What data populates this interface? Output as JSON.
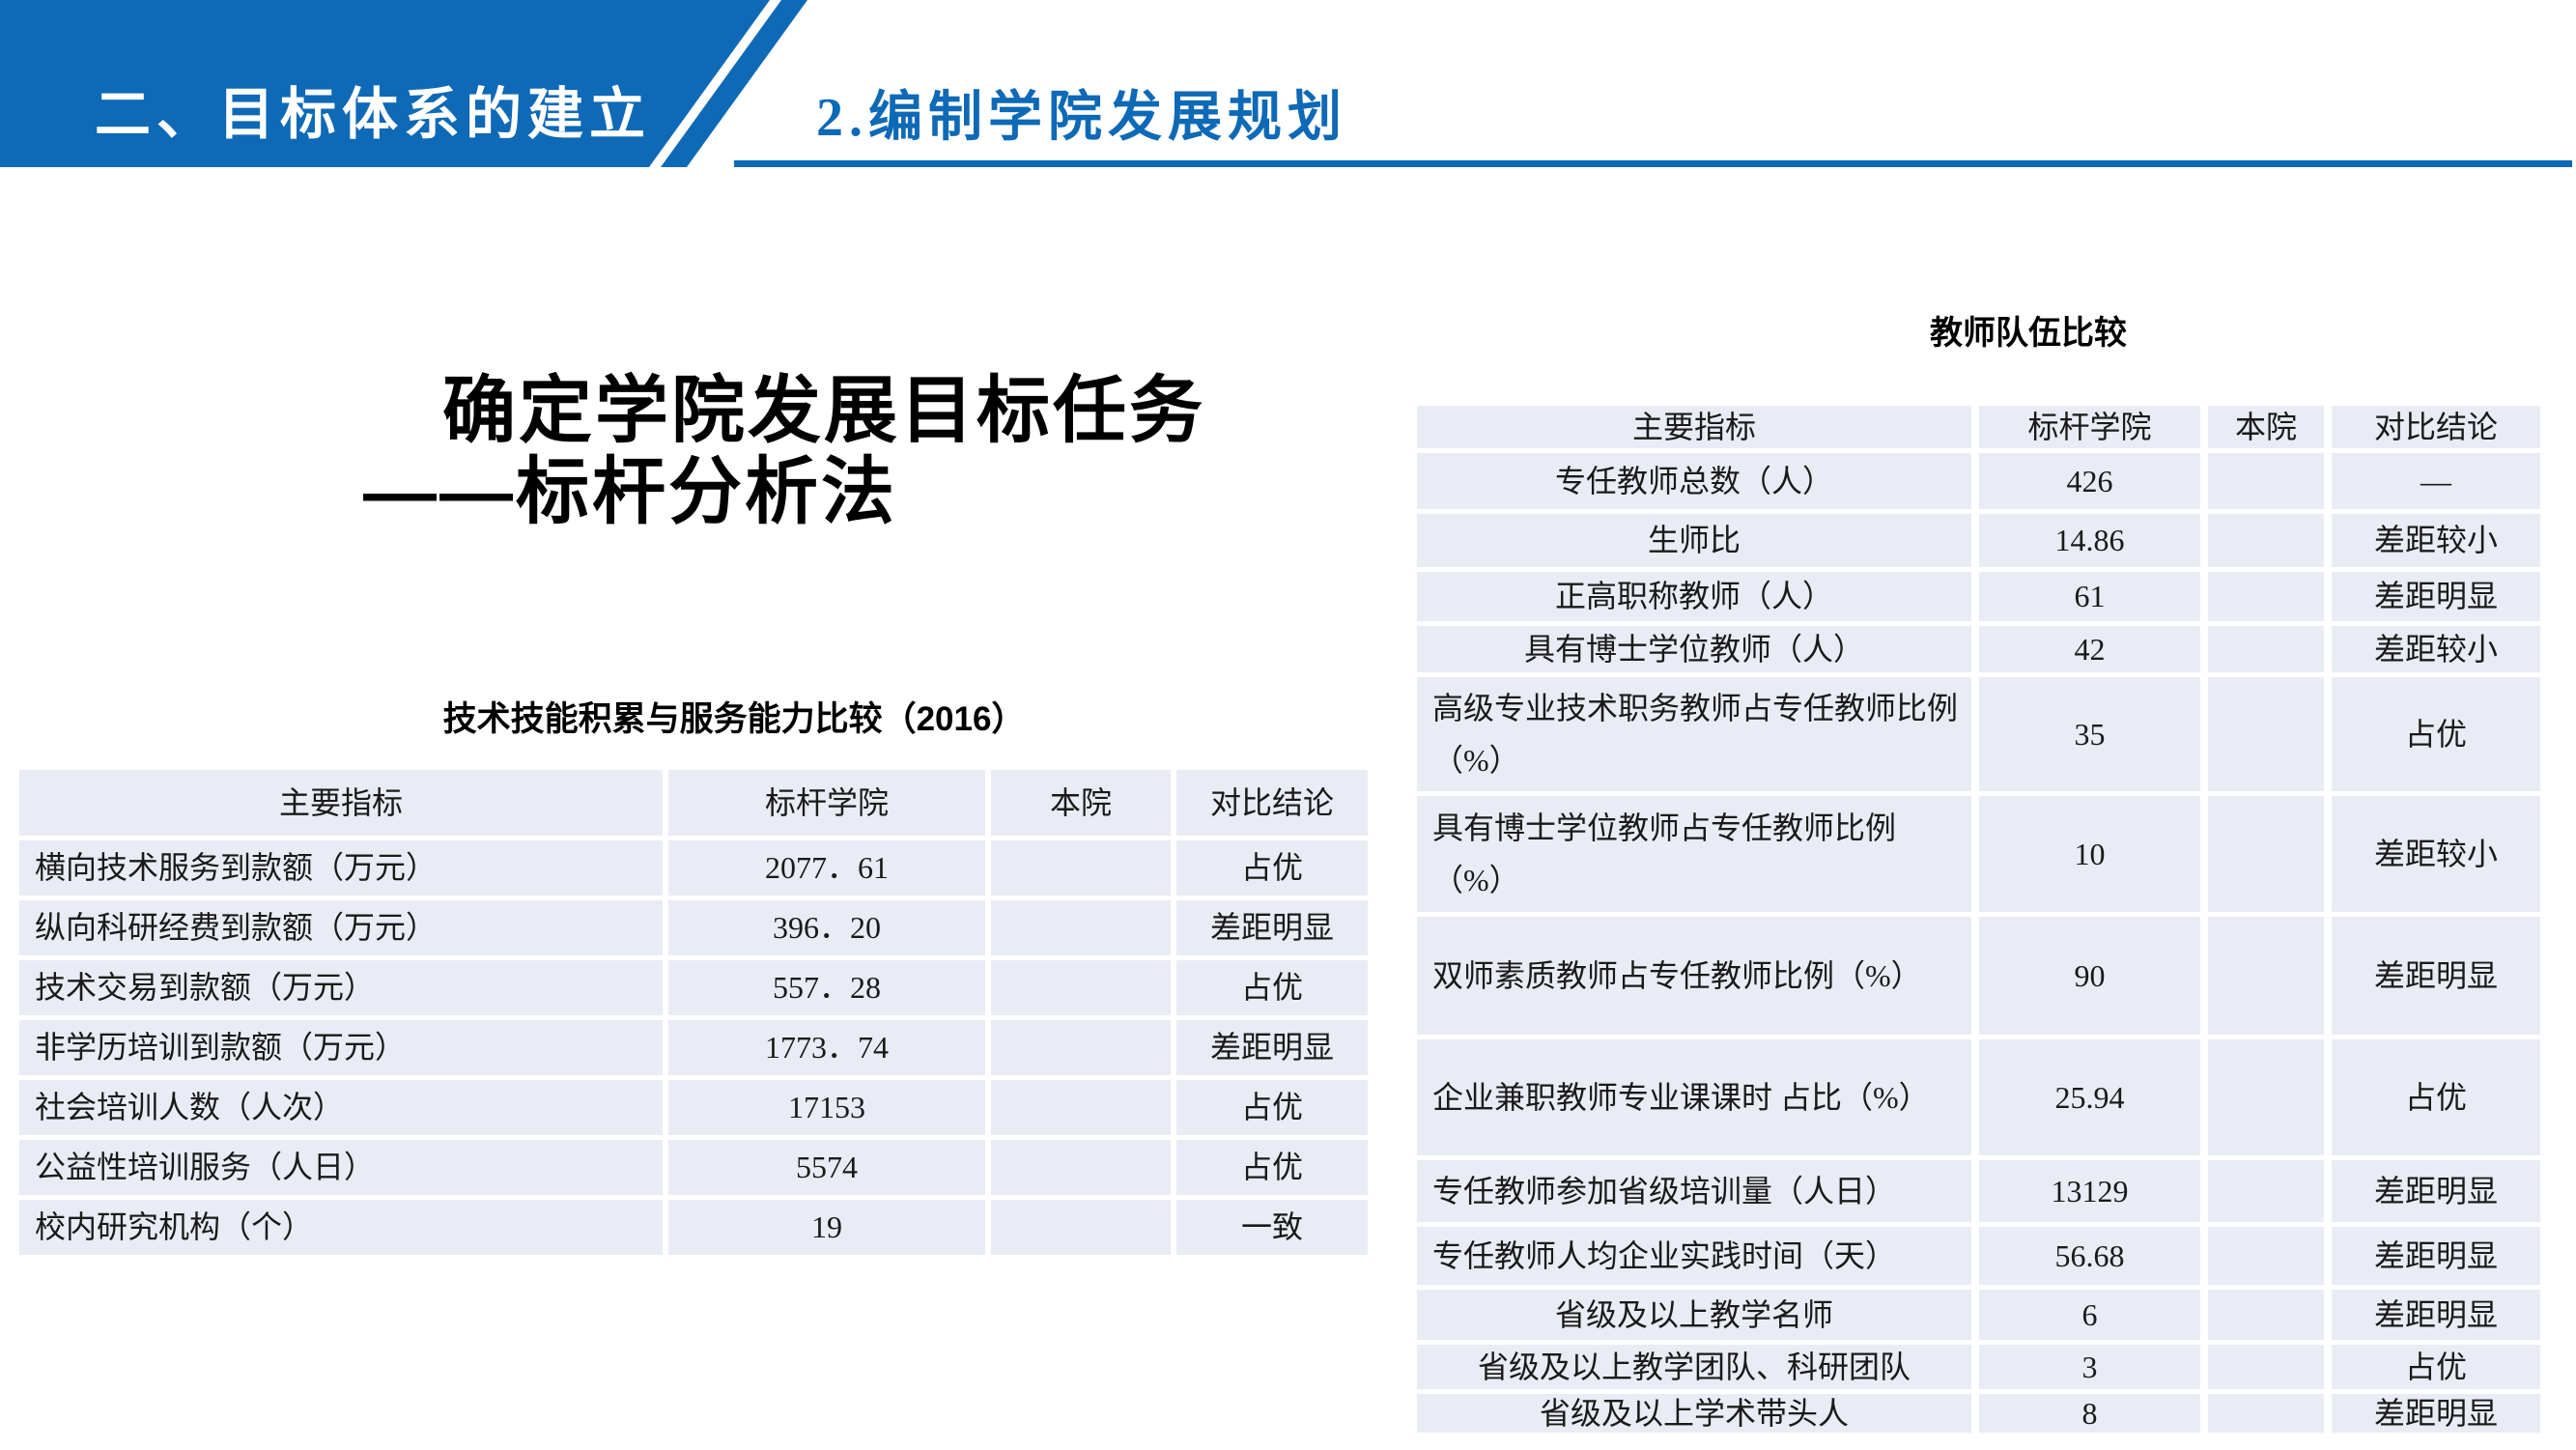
{
  "banner": {
    "title": "二、目标体系的建立"
  },
  "header": {
    "subtitle": "2.编制学院发展规划"
  },
  "main_title": {
    "line1": "确定学院发展目标任务",
    "line2": "——标杆分析法"
  },
  "left_table": {
    "title": "技术技能积累与服务能力比较（2016）",
    "columns": [
      "主要指标",
      "标杆学院",
      "本院",
      "对比结论"
    ],
    "rows": [
      {
        "indicator": "横向技术服务到款额（万元）",
        "benchmark": "2077．61",
        "ours": "",
        "conclusion": "占优"
      },
      {
        "indicator": "纵向科研经费到款额（万元）",
        "benchmark": "396．20",
        "ours": "",
        "conclusion": "差距明显"
      },
      {
        "indicator": "技术交易到款额（万元）",
        "benchmark": "557．28",
        "ours": "",
        "conclusion": "占优"
      },
      {
        "indicator": "非学历培训到款额（万元）",
        "benchmark": "1773．74",
        "ours": "",
        "conclusion": "差距明显"
      },
      {
        "indicator": "社会培训人数（人次）",
        "benchmark": "17153",
        "ours": "",
        "conclusion": "占优"
      },
      {
        "indicator": "公益性培训服务（人日）",
        "benchmark": "5574",
        "ours": "",
        "conclusion": "占优"
      },
      {
        "indicator": "校内研究机构（个）",
        "benchmark": "19",
        "ours": "",
        "conclusion": "一致"
      }
    ]
  },
  "right_table": {
    "title": "教师队伍比较",
    "columns": [
      "主要指标",
      "标杆学院",
      "本院",
      "对比结论"
    ],
    "rows": [
      {
        "indicator": "专任教师总数（人）",
        "benchmark": "426",
        "ours": "",
        "conclusion": "—"
      },
      {
        "indicator": "生师比",
        "benchmark": "14.86",
        "ours": "",
        "conclusion": "差距较小"
      },
      {
        "indicator": "正高职称教师（人）",
        "benchmark": "61",
        "ours": "",
        "conclusion": "差距明显"
      },
      {
        "indicator": "具有博士学位教师（人）",
        "benchmark": "42",
        "ours": "",
        "conclusion": "差距较小"
      },
      {
        "indicator": "高级专业技术职务教师占专任教师比例\n（%）",
        "benchmark": "35",
        "ours": "",
        "conclusion": "占优"
      },
      {
        "indicator": "具有博士学位教师占专任教师比例（%）",
        "benchmark": "10",
        "ours": "",
        "conclusion": "差距较小"
      },
      {
        "indicator": "双师素质教师占专任教师比例（%）",
        "benchmark": "90",
        "ours": "",
        "conclusion": "差距明显"
      },
      {
        "indicator": "企业兼职教师专业课课时 占比（%）",
        "benchmark": "25.94",
        "ours": "",
        "conclusion": "占优"
      },
      {
        "indicator": "专任教师参加省级培训量（人日）",
        "benchmark": "13129",
        "ours": "",
        "conclusion": "差距明显"
      },
      {
        "indicator": "专任教师人均企业实践时间（天）",
        "benchmark": "56.68",
        "ours": "",
        "conclusion": "差距明显"
      },
      {
        "indicator": "省级及以上教学名师",
        "benchmark": "6",
        "ours": "",
        "conclusion": "差距明显"
      },
      {
        "indicator": "省级及以上教学团队、科研团队",
        "benchmark": "3",
        "ours": "",
        "conclusion": "占优"
      },
      {
        "indicator": "省级及以上学术带头人",
        "benchmark": "8",
        "ours": "",
        "conclusion": "差距明显"
      }
    ]
  },
  "colors": {
    "accent_blue": "#0e69b6",
    "table_cell_bg": "#e9ecf4",
    "text": "#1a1a1a"
  }
}
